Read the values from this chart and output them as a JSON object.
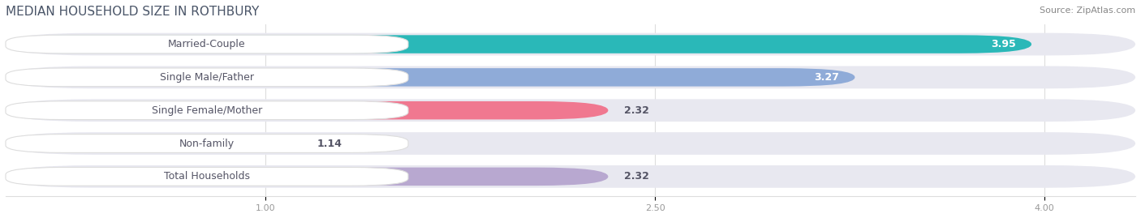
{
  "title": "MEDIAN HOUSEHOLD SIZE IN ROTHBURY",
  "source": "Source: ZipAtlas.com",
  "categories": [
    "Married-Couple",
    "Single Male/Father",
    "Single Female/Mother",
    "Non-family",
    "Total Households"
  ],
  "values": [
    3.95,
    3.27,
    2.32,
    1.14,
    2.32
  ],
  "bar_colors": [
    "#2ab8b8",
    "#8fabd8",
    "#f07890",
    "#f5c98a",
    "#b8a8d0"
  ],
  "bar_bg_color": "#e8e8f0",
  "xlim_min": 0.0,
  "xlim_max": 4.35,
  "data_min": 0.0,
  "data_max": 4.35,
  "xticks": [
    1.0,
    2.5,
    4.0
  ],
  "xtick_labels": [
    "1.00",
    "2.50",
    "4.00"
  ],
  "title_fontsize": 11,
  "source_fontsize": 8,
  "label_fontsize": 9,
  "value_fontsize": 9,
  "bg_color": "#ffffff",
  "title_color": "#4a5568",
  "source_color": "#888888"
}
